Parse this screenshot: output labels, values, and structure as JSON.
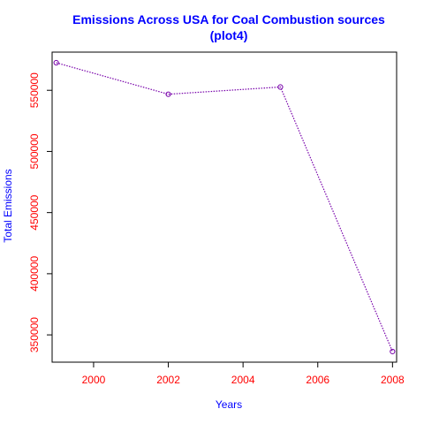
{
  "chart_data": {
    "type": "line",
    "title": "Emissions Across USA for Coal Combustion sources",
    "subtitle": "(plot4)",
    "xlabel": "Years",
    "ylabel": "Total Emissions",
    "x": [
      1999,
      2002,
      2005,
      2008
    ],
    "series": [
      {
        "values": [
          572530,
          546790,
          552680,
          336370
        ]
      }
    ],
    "xlim": [
      1998.89,
      2008.11
    ],
    "ylim": [
      327680,
      581220
    ],
    "xticks": [
      2000,
      2002,
      2004,
      2006,
      2008
    ],
    "yticks": [
      350000,
      400000,
      450000,
      500000,
      550000
    ],
    "grid": false,
    "line_style": "dotted",
    "marker": "open-circle",
    "colors": {
      "title": "#0000ff",
      "axis_label": "#0000ff",
      "tick_label": "#ff0000",
      "series": "#7700aa",
      "axes": "#000000"
    }
  }
}
